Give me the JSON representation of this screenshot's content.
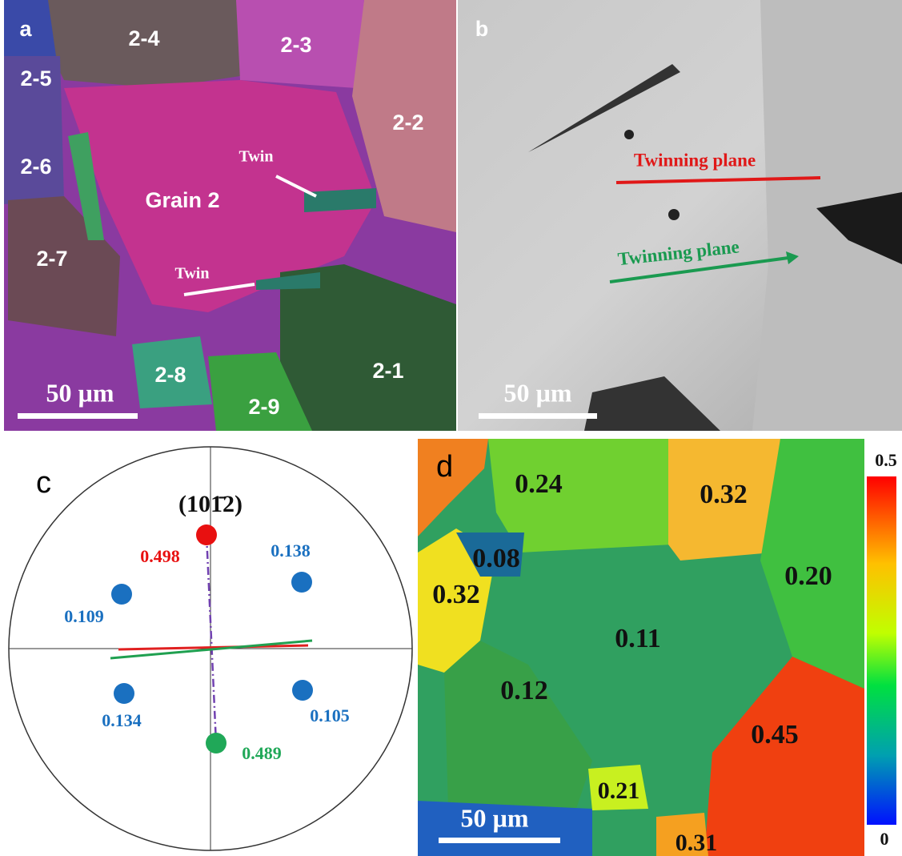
{
  "panels": [
    {
      "label": "a",
      "labels": [
        "2-4",
        "2-3",
        "2-5",
        "2-2",
        "2-6",
        "Grain 2",
        "Twin",
        "Twin",
        "2-7",
        "2-8",
        "2-9",
        "2-1"
      ],
      "scale_bar": "50 µm"
    },
    {
      "label": "b",
      "annotations": [
        "Twinning plane",
        "Twinning plane"
      ],
      "scale_bar": "50 µm"
    },
    {
      "label": "c",
      "plane": "(101̄2)",
      "points": [
        "0.498",
        "0.138",
        "0.109",
        "0.134",
        "0.105",
        "0.489"
      ]
    },
    {
      "label": "d",
      "values": [
        "0.24",
        "0.32",
        "0.08",
        "0.32",
        "0.20",
        "0.11",
        "0.12",
        "0.45",
        "0.21",
        "0.31"
      ],
      "scale_bar": "50 µm",
      "colorbar": [
        "0.5",
        "0"
      ]
    }
  ]
}
